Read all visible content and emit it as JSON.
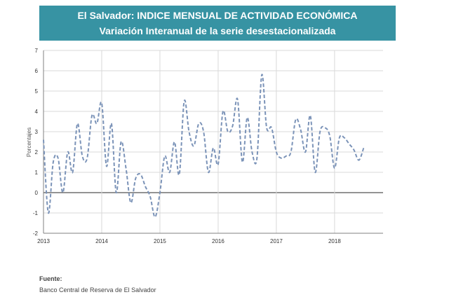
{
  "title": "El Salvador: INDICE MENSUAL DE ACTIVIDAD ECONÓMICA",
  "subtitle": "Variación Interanual de la serie desestacionalizada",
  "source": {
    "label": "Fuente:",
    "text": "Banco Central de Reserva de El Salvador"
  },
  "colors": {
    "banner": "#3793a3",
    "series": "#7b93b8",
    "grid": "#d9d9d9",
    "axis": "#808080"
  },
  "chart_data": {
    "type": "line",
    "title": "",
    "xlabel": "",
    "ylabel": "Porcentajes",
    "ylim": [
      -2,
      7
    ],
    "xlim": [
      2013.0,
      2018.833
    ],
    "yticks": [
      "-2",
      "-1",
      "0",
      "1",
      "2",
      "3",
      "4",
      "5",
      "6",
      "7"
    ],
    "xticks": [
      "2013",
      "2014",
      "2015",
      "2016",
      "2017",
      "2018"
    ],
    "grid": true,
    "legend": "none",
    "line_style": "dashed",
    "series": [
      {
        "x": [
          2013.0,
          2013.083,
          2013.167,
          2013.25,
          2013.333,
          2013.417,
          2013.5,
          2013.583,
          2013.667,
          2013.75,
          2013.833,
          2013.917,
          2014.0,
          2014.083,
          2014.167,
          2014.25,
          2014.333,
          2014.417,
          2014.5,
          2014.583,
          2014.667,
          2014.75,
          2014.833,
          2014.917,
          2015.0,
          2015.083,
          2015.167,
          2015.25,
          2015.333,
          2015.417,
          2015.5,
          2015.583,
          2015.667,
          2015.75,
          2015.833,
          2015.917,
          2016.0,
          2016.083,
          2016.167,
          2016.25,
          2016.333,
          2016.417,
          2016.5,
          2016.583,
          2016.667,
          2016.75,
          2016.833,
          2016.917,
          2017.0,
          2017.083,
          2017.167,
          2017.25,
          2017.333,
          2017.417,
          2017.5,
          2017.583,
          2017.667,
          2017.75,
          2017.833,
          2017.917,
          2018.0,
          2018.083,
          2018.167,
          2018.25,
          2018.333,
          2018.417,
          2018.5,
          2018.583,
          2018.667,
          2018.75,
          2018.833
        ],
        "values": [
          2.6,
          -1.0,
          1.5,
          1.7,
          0.0,
          2.0,
          1.0,
          3.4,
          1.8,
          1.7,
          3.8,
          3.4,
          4.4,
          1.3,
          3.4,
          0.0,
          2.5,
          1.2,
          -0.5,
          0.7,
          0.9,
          0.3,
          -0.2,
          -1.2,
          0.0,
          1.8,
          1.0,
          2.5,
          0.9,
          4.5,
          3.0,
          2.3,
          3.4,
          3.0,
          1.0,
          2.2,
          1.4,
          4.0,
          3.0,
          3.3,
          4.6,
          1.5,
          3.7,
          2.0,
          1.7,
          5.8,
          3.2,
          3.2,
          2.0,
          1.7,
          1.8,
          2.0,
          3.6,
          3.1,
          2.0,
          3.8,
          1.0,
          3.0,
          3.2,
          2.8,
          1.2,
          2.7,
          2.7,
          2.4,
          2.1,
          1.6,
          2.2,
          null,
          null,
          null,
          null
        ]
      }
    ]
  }
}
